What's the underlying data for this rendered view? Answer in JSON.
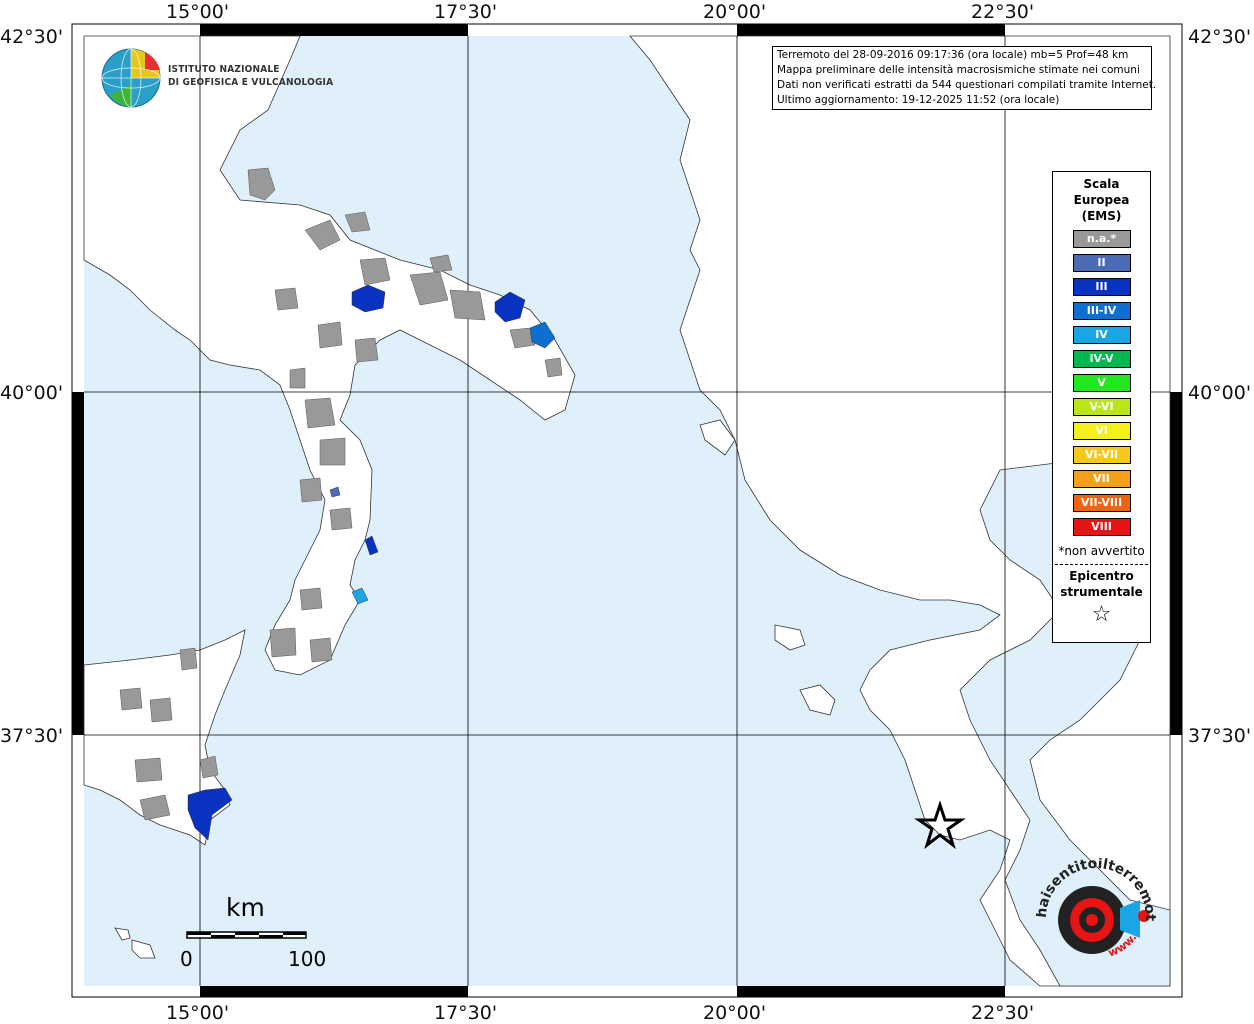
{
  "map": {
    "lon_labels": [
      "15°00'",
      "17°30'",
      "20°00'",
      "22°30'"
    ],
    "lat_labels": [
      "42°30'",
      "40°00'",
      "37°30'"
    ],
    "colors": {
      "sea": "#dff0fb",
      "land": "#ffffff",
      "not_available": "#999999",
      "epicenter": "#000000"
    }
  },
  "institute": {
    "line1": "ISTITUTO NAZIONALE",
    "line2": "DI GEOFISICA E VULCANOLOGIA"
  },
  "info": {
    "line1": "Terremoto del 28-09-2016 09:17:36 (ora locale) mb=5 Prof=48 km",
    "line2": "Mappa preliminare delle intensità macrosismiche stimate nei comuni",
    "line3": "Dati non verificati estratti da 544 questionari compilati tramite Internet.",
    "line4": "Ultimo aggiornamento: 19-12-2025 11:52 (ora locale)"
  },
  "legend": {
    "title_1": "Scala",
    "title_2": "Europea",
    "title_3": "(EMS)",
    "items": [
      {
        "label": "n.a.*",
        "color": "#999999"
      },
      {
        "label": "II",
        "color": "#4c6bb5"
      },
      {
        "label": "III",
        "color": "#0a32c0"
      },
      {
        "label": "III-IV",
        "color": "#0f6fd0"
      },
      {
        "label": "IV",
        "color": "#1aa6e6"
      },
      {
        "label": "IV-V",
        "color": "#00b850"
      },
      {
        "label": "V",
        "color": "#22e61e"
      },
      {
        "label": "V-VI",
        "color": "#b8e61a"
      },
      {
        "label": "VI",
        "color": "#f5f01a"
      },
      {
        "label": "VI-VII",
        "color": "#f5c81a"
      },
      {
        "label": "VII",
        "color": "#f5a01a"
      },
      {
        "label": "VII-VIII",
        "color": "#f0640f"
      },
      {
        "label": "VIII",
        "color": "#e61414"
      }
    ],
    "note": "*non avvertito",
    "epicenter_1": "Epicentro",
    "epicenter_2": "strumentale",
    "epicenter_symbol": "☆"
  },
  "scalebar": {
    "unit": "km",
    "start": "0",
    "end": "100"
  },
  "watermark": {
    "text": "haisentitoilterremoto.it",
    "site": "www."
  }
}
